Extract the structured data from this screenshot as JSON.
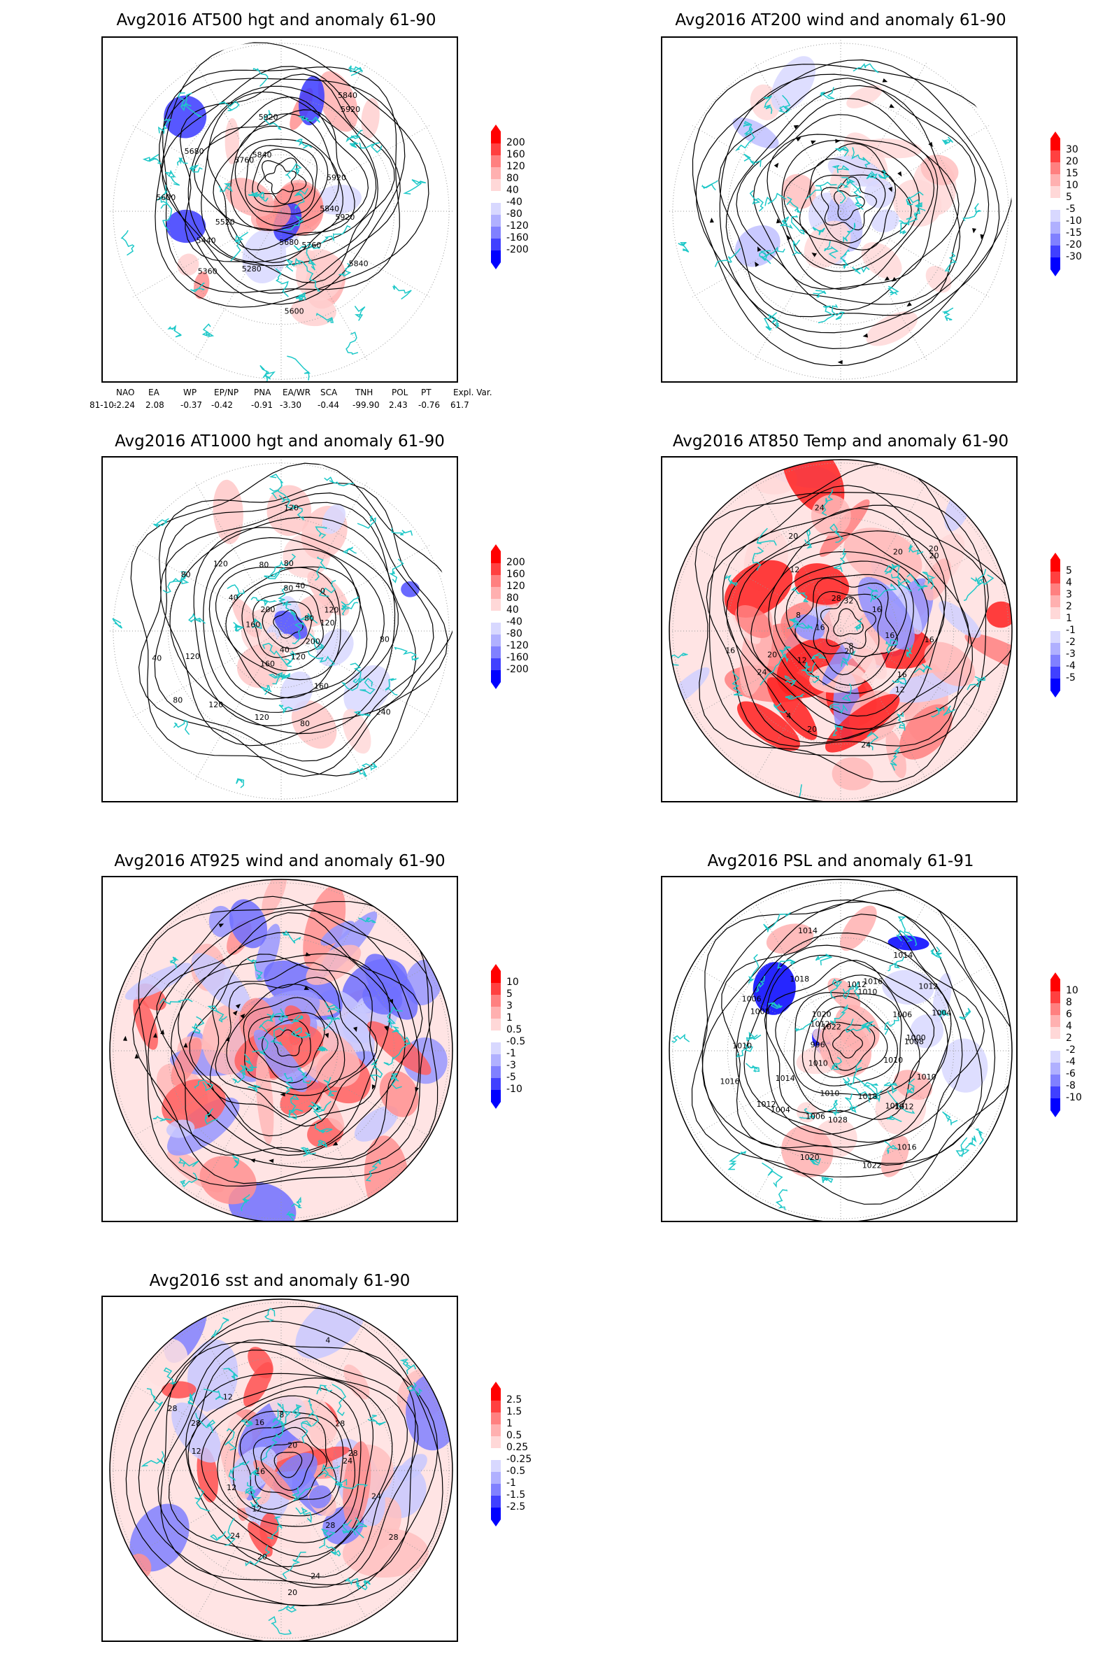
{
  "panels": [
    {
      "id": "at500",
      "title": "Avg2016 AT500 hgt and anomaly 61-90",
      "colorbar": {
        "labels": [
          "200",
          "160",
          "120",
          "80",
          "40",
          "-40",
          "-80",
          "-120",
          "-160",
          "-200"
        ],
        "colors": [
          "#ff0000",
          "#ff4040",
          "#ff8080",
          "#ffb0b0",
          "#ffd8d8",
          "#ffffff",
          "#d8d8ff",
          "#b0b0ff",
          "#8080ff",
          "#4040ff",
          "#0000ff"
        ]
      },
      "contour_labels": [
        "5920",
        "5840",
        "5760",
        "5680",
        "5600",
        "5280",
        "5360",
        "5440",
        "5520",
        "5600",
        "5680",
        "5760",
        "5840",
        "5920",
        "5840",
        "5920",
        "5920",
        "5840"
      ],
      "indices": {
        "headers": [
          "NAO",
          "EA",
          "WP",
          "EP/NP",
          "PNA",
          "EA/WR",
          "SCA",
          "TNH",
          "POL",
          "PT",
          "Expl. Var."
        ],
        "row_label": "81-10:",
        "values": [
          "-2.24",
          "2.08",
          "-0.37",
          "-0.42",
          "-0.91",
          "-3.30",
          "-0.44",
          "-99.90",
          "2.43",
          "-0.76",
          "61.7"
        ]
      }
    },
    {
      "id": "at200",
      "title": "Avg2016 AT200 wind and anomaly 61-90",
      "colorbar": {
        "labels": [
          "30",
          "20",
          "15",
          "10",
          "5",
          "-5",
          "-10",
          "-15",
          "-20",
          "-30"
        ],
        "colors": [
          "#ff0000",
          "#ff4040",
          "#ff8080",
          "#ffb0b0",
          "#ffd8d8",
          "#ffffff",
          "#d8d8ff",
          "#b0b0ff",
          "#8080ff",
          "#4040ff",
          "#0000ff"
        ]
      },
      "contour_labels": []
    },
    {
      "id": "at1000",
      "title": "Avg2016 AT1000 hgt and anomaly 61-90",
      "colorbar": {
        "labels": [
          "200",
          "160",
          "120",
          "80",
          "40",
          "-40",
          "-80",
          "-120",
          "-160",
          "-200"
        ],
        "colors": [
          "#ff0000",
          "#ff4040",
          "#ff8080",
          "#ffb0b0",
          "#ffd8d8",
          "#ffffff",
          "#d8d8ff",
          "#b0b0ff",
          "#8080ff",
          "#4040ff",
          "#0000ff"
        ]
      },
      "contour_labels": [
        "80",
        "200",
        "240",
        "160",
        "120",
        "80",
        "40",
        "120",
        "160",
        "120",
        "80",
        "120",
        "40",
        "160",
        "80",
        "40",
        "120",
        "200",
        "80",
        "120",
        "80",
        "80",
        "40",
        "0",
        "120",
        "80",
        "120"
      ]
    },
    {
      "id": "at850",
      "title": "Avg2016 AT850 Temp and anomaly 61-90",
      "colorbar": {
        "labels": [
          "5",
          "4",
          "3",
          "2",
          "1",
          "-1",
          "-2",
          "-3",
          "-4",
          "-5"
        ],
        "colors": [
          "#ff0000",
          "#ff4040",
          "#ff8080",
          "#ffb0b0",
          "#ffd8d8",
          "#ffffff",
          "#d8d8ff",
          "#b0b0ff",
          "#8080ff",
          "#4040ff",
          "#0000ff"
        ]
      },
      "contour_labels": [
        "16",
        "16",
        "12",
        "8",
        "20",
        "24",
        "20",
        "4",
        "12",
        "24",
        "20",
        "16",
        "16",
        "8",
        "12",
        "20",
        "24",
        "28",
        "32",
        "20",
        "20",
        "20",
        "16",
        "16"
      ]
    },
    {
      "id": "at925",
      "title": "Avg2016 AT925 wind and anomaly 61-90",
      "colorbar": {
        "labels": [
          "10",
          "5",
          "3",
          "1",
          "0.5",
          "-0.5",
          "-1",
          "-3",
          "-5",
          "-10"
        ],
        "colors": [
          "#ff0000",
          "#ff4040",
          "#ff8080",
          "#ffb0b0",
          "#ffd8d8",
          "#ffffff",
          "#d8d8ff",
          "#b0b0ff",
          "#8080ff",
          "#4040ff",
          "#0000ff"
        ]
      },
      "contour_labels": []
    },
    {
      "id": "psl",
      "title": "Avg2016 PSL and anomaly 61-91",
      "colorbar": {
        "labels": [
          "10",
          "8",
          "6",
          "4",
          "2",
          "-2",
          "-4",
          "-6",
          "-8",
          "-10"
        ],
        "colors": [
          "#ff0000",
          "#ff4040",
          "#ff8080",
          "#ffb0b0",
          "#ffd8d8",
          "#ffffff",
          "#d8d8ff",
          "#b0b0ff",
          "#8080ff",
          "#4040ff",
          "#0000ff"
        ]
      },
      "contour_labels": [
        "1010",
        "1010",
        "1012",
        "1014",
        "1016",
        "1018",
        "1022",
        "1028",
        "1020",
        "1010",
        "1006",
        "1004",
        "1010",
        "1012",
        "1014",
        "1016",
        "996",
        "1010",
        "1006",
        "1008",
        "1012",
        "1018",
        "1020",
        "1022",
        "1014",
        "1012",
        "1010",
        "1016",
        "1014",
        "1012",
        "1006",
        "1004",
        "1000",
        "1008"
      ]
    },
    {
      "id": "sst",
      "title": "Avg2016 sst and anomaly 61-90",
      "colorbar": {
        "labels": [
          "2.5",
          "1.5",
          "1",
          "0.5",
          "0.25",
          "-0.25",
          "-0.5",
          "-1",
          "-1.5",
          "-2.5"
        ],
        "colors": [
          "#ff0000",
          "#ff4040",
          "#ff8080",
          "#ffb0b0",
          "#ffd8d8",
          "#ffffff",
          "#d8d8ff",
          "#b0b0ff",
          "#8080ff",
          "#4040ff",
          "#0000ff"
        ]
      },
      "contour_labels": [
        "24",
        "28",
        "28",
        "24",
        "20",
        "20",
        "24",
        "12",
        "12",
        "16",
        "12",
        "28",
        "28",
        "12",
        "16",
        "8",
        "4",
        "20",
        "28",
        "28",
        "24"
      ]
    }
  ],
  "theme": {
    "coast_color": "#1ec8c8",
    "contour_color": "#000000"
  }
}
